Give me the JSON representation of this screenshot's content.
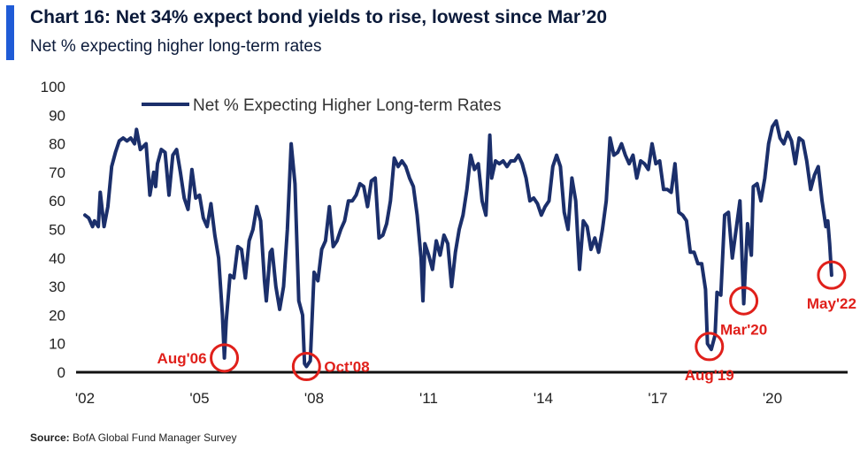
{
  "header": {
    "title": "Chart 16: Net 34% expect bond yields to rise, lowest since Mar’20",
    "subtitle": "Net % expecting higher long-term rates"
  },
  "footer": {
    "source_label": "Source:",
    "source_text": "BofA Global Fund Manager Survey"
  },
  "colors": {
    "accent": "#1f5bd6",
    "line": "#1b2f6b",
    "annotation": "#e0201b"
  },
  "chart_data": {
    "type": "line",
    "title": "Chart 16: Net 34% expect bond yields to rise, lowest since Mar’20",
    "subtitle": "Net % expecting higher long-term rates",
    "ylim": [
      0,
      100
    ],
    "yticks": [
      0,
      10,
      20,
      30,
      40,
      50,
      60,
      70,
      80,
      90,
      100
    ],
    "xlim": [
      2002.0,
      2021.9
    ],
    "xticks": [
      {
        "value": 2002,
        "label": "'02"
      },
      {
        "value": 2005,
        "label": "'05"
      },
      {
        "value": 2008,
        "label": "'08"
      },
      {
        "value": 2011,
        "label": "'11"
      },
      {
        "value": 2014,
        "label": "'14"
      },
      {
        "value": 2017,
        "label": "'17"
      },
      {
        "value": 2020,
        "label": "'20"
      }
    ],
    "legend": {
      "position": "top-left"
    },
    "grid": false,
    "series": [
      {
        "name": "Net % Expecting Higher Long-term Rates",
        "points": [
          [
            2002.0,
            55
          ],
          [
            2002.1,
            54
          ],
          [
            2002.2,
            51
          ],
          [
            2002.25,
            53
          ],
          [
            2002.35,
            51
          ],
          [
            2002.4,
            63
          ],
          [
            2002.5,
            51
          ],
          [
            2002.6,
            58
          ],
          [
            2002.7,
            72
          ],
          [
            2002.8,
            77
          ],
          [
            2002.9,
            81
          ],
          [
            2003.0,
            82
          ],
          [
            2003.1,
            81
          ],
          [
            2003.2,
            82
          ],
          [
            2003.3,
            80
          ],
          [
            2003.35,
            85
          ],
          [
            2003.45,
            78
          ],
          [
            2003.6,
            80
          ],
          [
            2003.7,
            62
          ],
          [
            2003.8,
            70
          ],
          [
            2003.85,
            65
          ],
          [
            2003.9,
            73
          ],
          [
            2004.0,
            78
          ],
          [
            2004.1,
            77
          ],
          [
            2004.2,
            62
          ],
          [
            2004.3,
            76
          ],
          [
            2004.4,
            78
          ],
          [
            2004.5,
            70
          ],
          [
            2004.6,
            61
          ],
          [
            2004.7,
            57
          ],
          [
            2004.8,
            71
          ],
          [
            2004.9,
            61
          ],
          [
            2005.0,
            62
          ],
          [
            2005.1,
            54
          ],
          [
            2005.2,
            51
          ],
          [
            2005.3,
            59
          ],
          [
            2005.4,
            48
          ],
          [
            2005.5,
            40
          ],
          [
            2005.6,
            20
          ],
          [
            2005.65,
            5
          ],
          [
            2005.7,
            18
          ],
          [
            2005.8,
            34
          ],
          [
            2005.9,
            33
          ],
          [
            2006.0,
            44
          ],
          [
            2006.1,
            43
          ],
          [
            2006.2,
            33
          ],
          [
            2006.3,
            46
          ],
          [
            2006.4,
            50
          ],
          [
            2006.5,
            58
          ],
          [
            2006.6,
            53
          ],
          [
            2006.7,
            32
          ],
          [
            2006.75,
            25
          ],
          [
            2006.85,
            42
          ],
          [
            2006.9,
            43
          ],
          [
            2007.0,
            30
          ],
          [
            2007.1,
            22
          ],
          [
            2007.2,
            30
          ],
          [
            2007.3,
            50
          ],
          [
            2007.4,
            80
          ],
          [
            2007.5,
            66
          ],
          [
            2007.6,
            25
          ],
          [
            2007.7,
            20
          ],
          [
            2007.75,
            3
          ],
          [
            2007.8,
            2
          ],
          [
            2007.9,
            4
          ],
          [
            2008.0,
            35
          ],
          [
            2008.1,
            32
          ],
          [
            2008.2,
            43
          ],
          [
            2008.3,
            46
          ],
          [
            2008.4,
            58
          ],
          [
            2008.5,
            44
          ],
          [
            2008.6,
            46
          ],
          [
            2008.7,
            50
          ],
          [
            2008.8,
            53
          ],
          [
            2008.9,
            60
          ],
          [
            2009.0,
            60
          ],
          [
            2009.1,
            62
          ],
          [
            2009.2,
            66
          ],
          [
            2009.3,
            65
          ],
          [
            2009.4,
            58
          ],
          [
            2009.5,
            67
          ],
          [
            2009.6,
            68
          ],
          [
            2009.7,
            47
          ],
          [
            2009.8,
            48
          ],
          [
            2009.9,
            52
          ],
          [
            2010.0,
            60
          ],
          [
            2010.1,
            75
          ],
          [
            2010.2,
            72
          ],
          [
            2010.3,
            74
          ],
          [
            2010.4,
            72
          ],
          [
            2010.5,
            68
          ],
          [
            2010.6,
            65
          ],
          [
            2010.7,
            55
          ],
          [
            2010.8,
            40
          ],
          [
            2010.85,
            25
          ],
          [
            2010.9,
            45
          ],
          [
            2011.0,
            41
          ],
          [
            2011.1,
            36
          ],
          [
            2011.2,
            46
          ],
          [
            2011.3,
            41
          ],
          [
            2011.4,
            48
          ],
          [
            2011.5,
            45
          ],
          [
            2011.6,
            30
          ],
          [
            2011.7,
            42
          ],
          [
            2011.8,
            50
          ],
          [
            2011.9,
            55
          ],
          [
            2012.0,
            64
          ],
          [
            2012.1,
            76
          ],
          [
            2012.2,
            71
          ],
          [
            2012.3,
            73
          ],
          [
            2012.4,
            60
          ],
          [
            2012.5,
            55
          ],
          [
            2012.6,
            83
          ],
          [
            2012.65,
            68
          ],
          [
            2012.75,
            74
          ],
          [
            2012.85,
            73
          ],
          [
            2012.95,
            74
          ],
          [
            2013.05,
            72
          ],
          [
            2013.15,
            74
          ],
          [
            2013.25,
            74
          ],
          [
            2013.35,
            76
          ],
          [
            2013.45,
            73
          ],
          [
            2013.55,
            68
          ],
          [
            2013.65,
            60
          ],
          [
            2013.75,
            61
          ],
          [
            2013.85,
            59
          ],
          [
            2013.95,
            55
          ],
          [
            2014.05,
            58
          ],
          [
            2014.15,
            60
          ],
          [
            2014.25,
            72
          ],
          [
            2014.35,
            76
          ],
          [
            2014.45,
            72
          ],
          [
            2014.55,
            56
          ],
          [
            2014.65,
            50
          ],
          [
            2014.75,
            68
          ],
          [
            2014.85,
            60
          ],
          [
            2014.95,
            36
          ],
          [
            2015.05,
            53
          ],
          [
            2015.15,
            51
          ],
          [
            2015.25,
            43
          ],
          [
            2015.35,
            47
          ],
          [
            2015.45,
            42
          ],
          [
            2015.55,
            50
          ],
          [
            2015.65,
            60
          ],
          [
            2015.75,
            82
          ],
          [
            2015.85,
            76
          ],
          [
            2015.95,
            77
          ],
          [
            2016.05,
            80
          ],
          [
            2016.15,
            76
          ],
          [
            2016.25,
            73
          ],
          [
            2016.35,
            76
          ],
          [
            2016.45,
            68
          ],
          [
            2016.55,
            74
          ],
          [
            2016.65,
            73
          ],
          [
            2016.75,
            71
          ],
          [
            2016.85,
            80
          ],
          [
            2016.95,
            73
          ],
          [
            2017.05,
            74
          ],
          [
            2017.15,
            64
          ],
          [
            2017.25,
            64
          ],
          [
            2017.35,
            63
          ],
          [
            2017.45,
            73
          ],
          [
            2017.55,
            56
          ],
          [
            2017.65,
            55
          ],
          [
            2017.75,
            53
          ],
          [
            2017.85,
            42
          ],
          [
            2017.95,
            42
          ],
          [
            2018.05,
            38
          ],
          [
            2018.15,
            38
          ],
          [
            2018.25,
            29
          ],
          [
            2018.3,
            10
          ],
          [
            2018.4,
            8
          ],
          [
            2018.5,
            13
          ],
          [
            2018.55,
            28
          ],
          [
            2018.65,
            27
          ],
          [
            2018.75,
            55
          ],
          [
            2018.85,
            56
          ],
          [
            2018.95,
            40
          ],
          [
            2019.05,
            50
          ],
          [
            2019.15,
            60
          ],
          [
            2019.25,
            24
          ],
          [
            2019.35,
            52
          ],
          [
            2019.45,
            41
          ],
          [
            2019.5,
            65
          ],
          [
            2019.6,
            66
          ],
          [
            2019.7,
            60
          ],
          [
            2019.8,
            68
          ],
          [
            2019.9,
            80
          ],
          [
            2020.0,
            86
          ],
          [
            2020.1,
            88
          ],
          [
            2020.2,
            82
          ],
          [
            2020.3,
            80
          ],
          [
            2020.4,
            84
          ],
          [
            2020.5,
            81
          ],
          [
            2020.6,
            73
          ],
          [
            2020.7,
            82
          ],
          [
            2020.8,
            81
          ],
          [
            2020.9,
            74
          ],
          [
            2021.0,
            64
          ],
          [
            2021.1,
            69
          ],
          [
            2021.2,
            72
          ],
          [
            2021.3,
            60
          ],
          [
            2021.4,
            51
          ],
          [
            2021.45,
            53
          ],
          [
            2021.5,
            45
          ],
          [
            2021.55,
            34
          ]
        ]
      }
    ],
    "annotations": [
      {
        "label": "Aug'06",
        "x": 2005.65,
        "y": 5,
        "label_side": "left"
      },
      {
        "label": "Oct'08",
        "x": 2007.8,
        "y": 2,
        "label_side": "right"
      },
      {
        "label": "Aug'19",
        "x": 2018.35,
        "y": 9,
        "label_side": "below"
      },
      {
        "label": "Mar'20",
        "x": 2019.25,
        "y": 25,
        "label_side": "below"
      },
      {
        "label": "May'22",
        "x": 2021.55,
        "y": 34,
        "label_side": "below"
      }
    ]
  }
}
